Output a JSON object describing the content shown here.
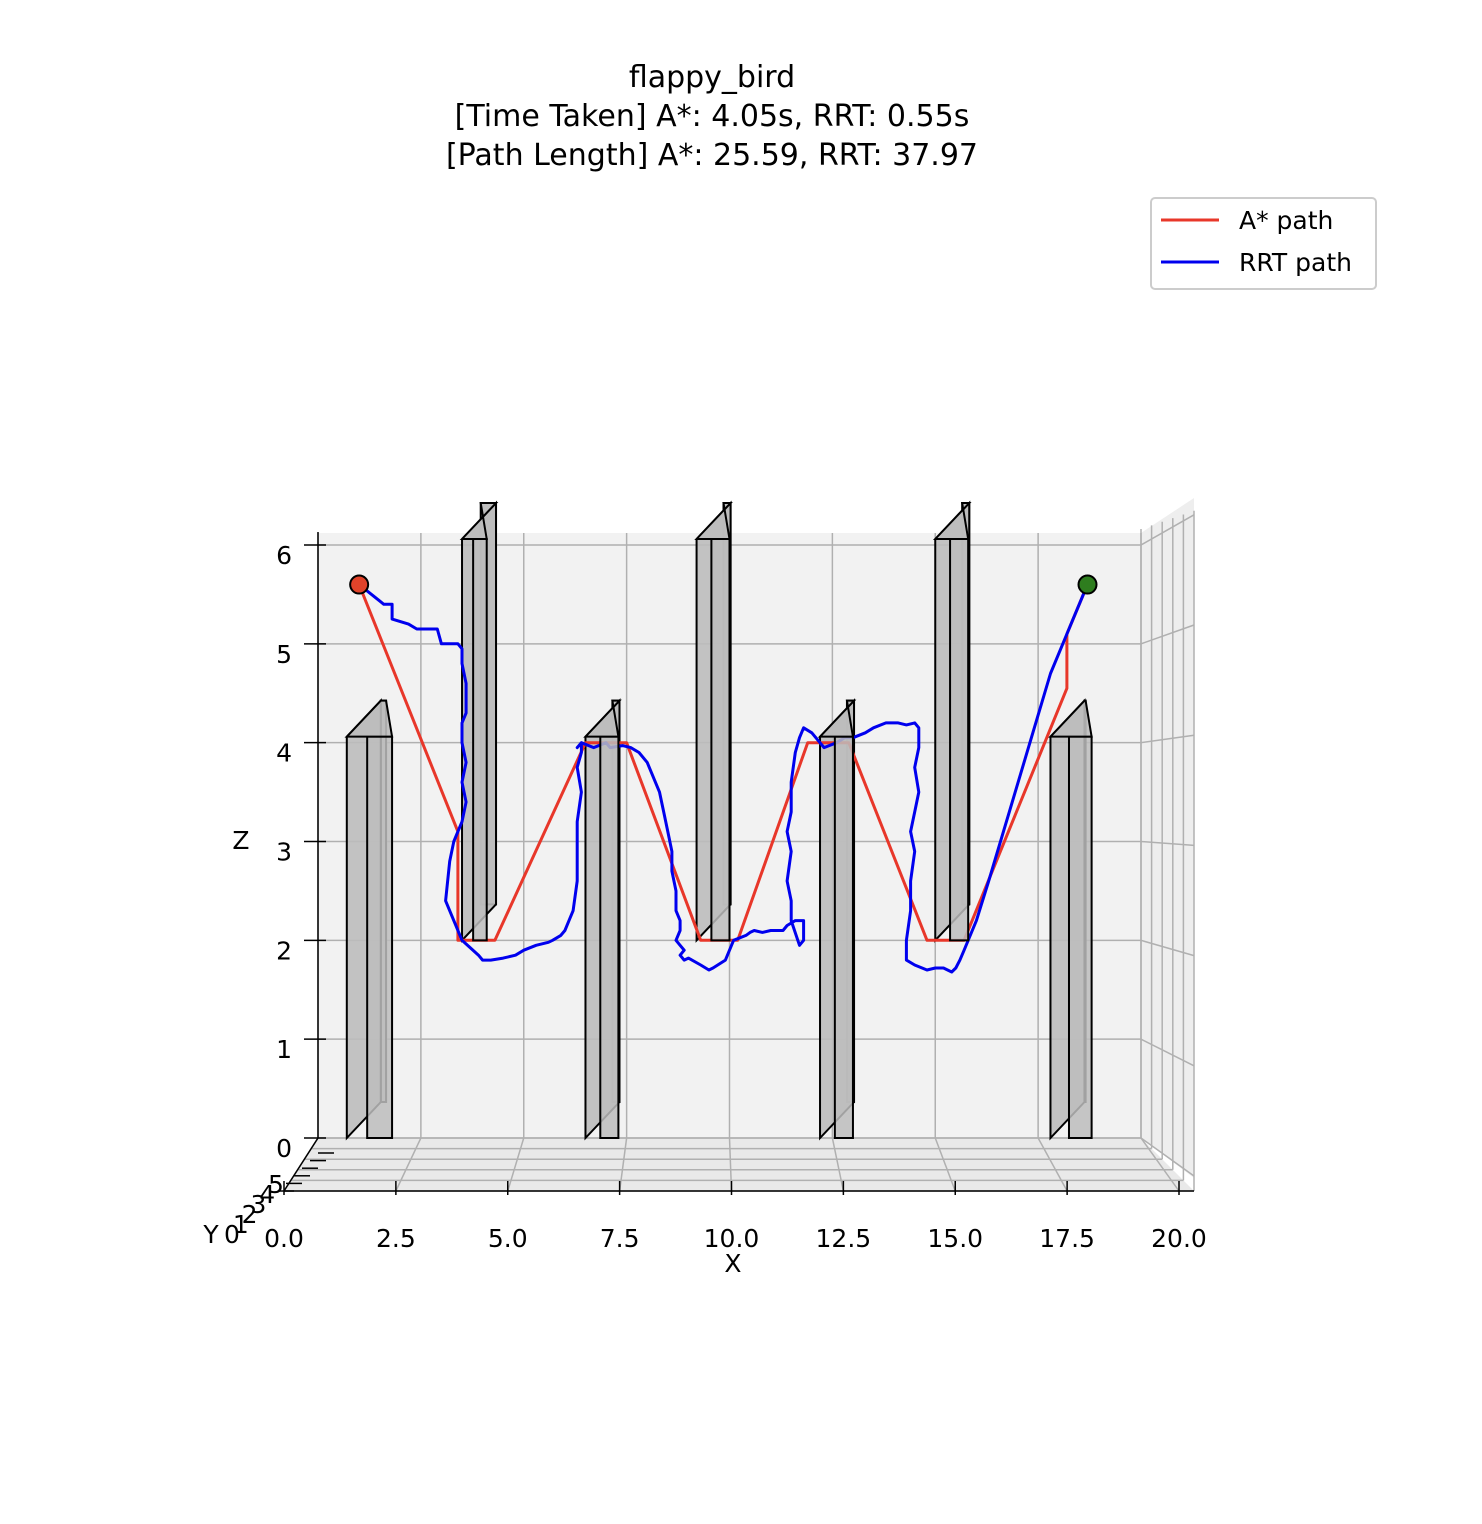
{
  "chart_data": {
    "type": "line",
    "title": "flappy_bird",
    "subtitle_lines": [
      "[Time Taken] A*: 4.05s, RRT: 0.55s",
      "[Path Length] A*: 25.59, RRT: 37.97"
    ],
    "xlabel": "X",
    "ylabel": "Y",
    "zlabel": "Z",
    "xlim": [
      0,
      20
    ],
    "zlim": [
      0,
      6
    ],
    "x_ticks": [
      "0.0",
      "2.5",
      "5.0",
      "7.5",
      "10.0",
      "12.5",
      "15.0",
      "17.5",
      "20.0"
    ],
    "z_ticks": [
      "0",
      "1",
      "2",
      "3",
      "4",
      "5",
      "6"
    ],
    "y_ticks": [
      "0",
      "1",
      "2",
      "3",
      "4",
      "5"
    ],
    "grid": true,
    "legend_position": "top-right",
    "colors": {
      "astar": "#e8372a",
      "rrt": "#0000ee",
      "obstacle_fill": "#bdbdbd",
      "start": "#e0432a",
      "goal": "#2e7d1e",
      "pane": "#f2f2f2",
      "grid": "#b0b0b0"
    },
    "start_point": {
      "x": 1.0,
      "z": 5.6
    },
    "goal_point": {
      "x": 18.7,
      "z": 5.6
    },
    "series": [
      {
        "name": "A* path",
        "color": "#e8372a",
        "x": [
          1.0,
          3.4,
          3.4,
          4.3,
          6.5,
          7.5,
          9.3,
          10.2,
          11.9,
          12.9,
          14.8,
          15.7,
          18.2,
          18.2,
          18.7
        ],
        "z": [
          5.6,
          3.1,
          2.0,
          2.0,
          4.0,
          4.0,
          2.0,
          2.0,
          4.0,
          4.0,
          2.0,
          2.0,
          4.55,
          5.1,
          5.6
        ]
      },
      {
        "name": "RRT path",
        "color": "#0000ee",
        "x": [
          1.0,
          1.3,
          1.6,
          1.8,
          1.8,
          2.2,
          2.4,
          2.9,
          3.0,
          3.4,
          3.5,
          3.5,
          3.6,
          3.6,
          3.5,
          3.5,
          3.6,
          3.5,
          3.6,
          3.5,
          3.3,
          3.2,
          3.1,
          3.3,
          3.5,
          3.9,
          4.0,
          4.2,
          4.5,
          4.8,
          5.0,
          5.3,
          5.6,
          5.7,
          5.9,
          6.0,
          6.1,
          6.2,
          6.3,
          6.3,
          6.3,
          6.4,
          6.3,
          6.4,
          6.4,
          6.3,
          6.4,
          6.7,
          7.0,
          7.1,
          7.4,
          7.6,
          7.8,
          8.0,
          8.1,
          8.3,
          8.4,
          8.5,
          8.6,
          8.6,
          8.7,
          8.7,
          8.8,
          8.8,
          8.7,
          8.8,
          8.9,
          8.8,
          8.9,
          9.0,
          9.3,
          9.5,
          9.6,
          9.9,
          10.0,
          10.1,
          10.4,
          10.5,
          10.6,
          10.8,
          11.0,
          11.3,
          11.4,
          11.6,
          11.8,
          11.8,
          11.7,
          11.5,
          11.5,
          11.4,
          11.5,
          11.4,
          11.5,
          11.5,
          11.6,
          11.7,
          11.8,
          12.0,
          12.2,
          12.3,
          12.6,
          12.8,
          13.0,
          13.3,
          13.5,
          13.8,
          14.1,
          14.3,
          14.5,
          14.6,
          14.6,
          14.5,
          14.6,
          14.5,
          14.4,
          14.5,
          14.4,
          14.4,
          14.3,
          14.3,
          14.5,
          14.8,
          15.0,
          15.2,
          15.4,
          15.5,
          15.6,
          15.7,
          15.8,
          16.0,
          16.3,
          16.8,
          17.3,
          17.8,
          18.3,
          18.7
        ],
        "z": [
          5.6,
          5.5,
          5.4,
          5.4,
          5.25,
          5.2,
          5.15,
          5.15,
          5.0,
          5.0,
          4.95,
          4.8,
          4.6,
          4.3,
          4.2,
          4.0,
          3.8,
          3.6,
          3.4,
          3.2,
          3.0,
          2.8,
          2.4,
          2.2,
          2.0,
          1.85,
          1.8,
          1.8,
          1.82,
          1.85,
          1.9,
          1.95,
          1.98,
          2.0,
          2.05,
          2.1,
          2.2,
          2.3,
          2.6,
          2.9,
          3.2,
          3.5,
          3.75,
          3.9,
          4.0,
          3.95,
          4.0,
          3.95,
          4.0,
          3.95,
          3.97,
          3.95,
          3.9,
          3.8,
          3.7,
          3.5,
          3.3,
          3.1,
          2.9,
          2.7,
          2.5,
          2.3,
          2.2,
          2.1,
          2.0,
          1.95,
          1.9,
          1.85,
          1.8,
          1.82,
          1.75,
          1.7,
          1.72,
          1.8,
          1.9,
          2.0,
          2.05,
          2.08,
          2.1,
          2.08,
          2.1,
          2.1,
          2.15,
          2.2,
          2.2,
          2.0,
          1.95,
          2.2,
          2.4,
          2.6,
          2.9,
          3.1,
          3.3,
          3.6,
          3.9,
          4.05,
          4.15,
          4.1,
          4.0,
          3.95,
          4.0,
          4.05,
          4.05,
          4.1,
          4.15,
          4.2,
          4.2,
          4.18,
          4.2,
          4.15,
          3.95,
          3.75,
          3.5,
          3.3,
          3.1,
          2.9,
          2.6,
          2.3,
          2.0,
          1.8,
          1.75,
          1.7,
          1.72,
          1.72,
          1.68,
          1.72,
          1.8,
          1.9,
          2.0,
          2.2,
          2.6,
          3.3,
          4.0,
          4.7,
          5.2,
          5.6
        ]
      }
    ],
    "obstacles": [
      {
        "x": [
          0.7,
          1.8
        ],
        "z": [
          0,
          4
        ]
      },
      {
        "x": [
          3.5,
          4.1
        ],
        "z": [
          2,
          6
        ]
      },
      {
        "x": [
          6.5,
          7.3
        ],
        "z": [
          0,
          4
        ]
      },
      {
        "x": [
          9.2,
          10.0
        ],
        "z": [
          2,
          6
        ]
      },
      {
        "x": [
          12.2,
          13.0
        ],
        "z": [
          0,
          4
        ]
      },
      {
        "x": [
          15.0,
          15.8
        ],
        "z": [
          2,
          6
        ]
      },
      {
        "x": [
          17.8,
          18.8
        ],
        "z": [
          0,
          4
        ]
      }
    ]
  }
}
